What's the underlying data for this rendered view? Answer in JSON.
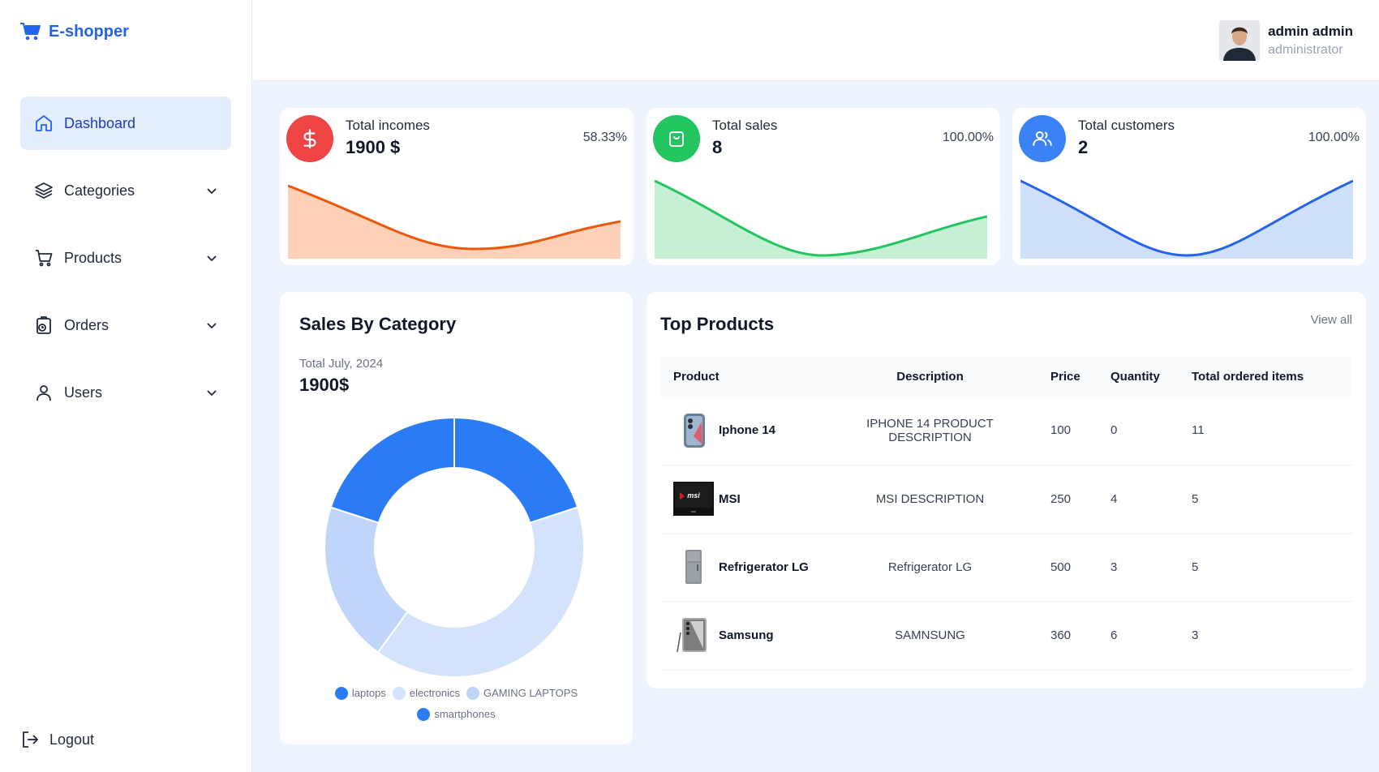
{
  "brand": {
    "name": "E-shopper"
  },
  "nav": [
    {
      "label": "Dashboard",
      "icon": "home-icon",
      "active": true,
      "expandable": false
    },
    {
      "label": "Categories",
      "icon": "layers-icon",
      "active": false,
      "expandable": true
    },
    {
      "label": "Products",
      "icon": "cart-icon",
      "active": false,
      "expandable": true
    },
    {
      "label": "Orders",
      "icon": "orders-icon",
      "active": false,
      "expandable": true
    },
    {
      "label": "Users",
      "icon": "user-icon",
      "active": false,
      "expandable": true
    }
  ],
  "logout": {
    "label": "Logout"
  },
  "user": {
    "name": "admin admin",
    "role": "administrator"
  },
  "stats": [
    {
      "title": "Total incomes",
      "value": "1900 $",
      "percent": "58.33%",
      "icon": "dollar-icon",
      "color": "#ef4444",
      "line": "#ea580c",
      "fill": "#fdd0b8"
    },
    {
      "title": "Total sales",
      "value": "8",
      "percent": "100.00%",
      "icon": "shopping-bag-icon",
      "color": "#22c55e",
      "line": "#22c55e",
      "fill": "#c6f0d3"
    },
    {
      "title": "Total customers",
      "value": "2",
      "percent": "100.00%",
      "icon": "users-icon",
      "color": "#3b82f6",
      "line": "#2563eb",
      "fill": "#cfe0fb"
    }
  ],
  "category": {
    "title": "Sales By Category",
    "subtitle": "Total July, 2024",
    "total": "1900$",
    "chart_data": {
      "type": "pie",
      "donut": true,
      "legend_position": "bottom",
      "slices": [
        {
          "name": "laptops",
          "value": 20,
          "color": "#2b7bf5"
        },
        {
          "name": "electronics",
          "value": 40,
          "color": "#d3e3fb"
        },
        {
          "name": "GAMING LAPTOPS",
          "value": 20,
          "color": "#bfd6fa"
        },
        {
          "name": "smartphones",
          "value": 20,
          "color": "#2b7bf5"
        }
      ]
    }
  },
  "products": {
    "title": "Top Products",
    "view_all": "View all",
    "columns": [
      "Product",
      "Description",
      "Price",
      "Quantity",
      "Total ordered items"
    ],
    "rows": [
      {
        "name": "Iphone 14",
        "description": "IPHONE 14 PRODUCT DESCRIPTION",
        "price": "100",
        "quantity": "0",
        "ordered": "11",
        "thumb": "phone-icon"
      },
      {
        "name": "MSI",
        "description": "MSI DESCRIPTION",
        "price": "250",
        "quantity": "4",
        "ordered": "5",
        "thumb": "laptop-icon"
      },
      {
        "name": "Refrigerator LG",
        "description": "Refrigerator LG",
        "price": "500",
        "quantity": "3",
        "ordered": "5",
        "thumb": "fridge-icon"
      },
      {
        "name": "Samsung",
        "description": "SAMNSUNG",
        "price": "360",
        "quantity": "6",
        "ordered": "3",
        "thumb": "phone-icon"
      }
    ]
  }
}
